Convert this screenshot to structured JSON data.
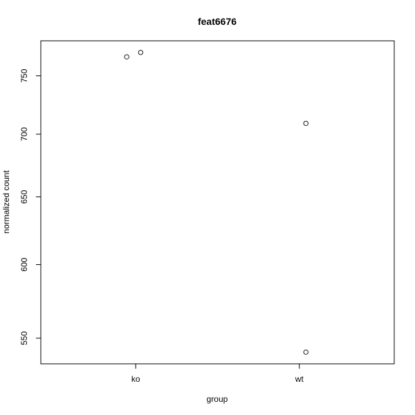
{
  "chart_data": {
    "type": "scatter",
    "title": "feat6676",
    "xlabel": "group",
    "ylabel": "normalized count",
    "categories": [
      "ko",
      "wt"
    ],
    "x_tick_labels": [
      "ko",
      "wt"
    ],
    "y_scale": "log",
    "y_ticks": [
      550,
      600,
      650,
      700,
      750
    ],
    "y_tick_labels": [
      "550",
      "600",
      "650",
      "700",
      "750"
    ],
    "ylim": [
      533.6,
      781.7
    ],
    "xlim": [
      0.42,
      2.58
    ],
    "grid": false,
    "points": [
      {
        "group": "ko",
        "x": 0.945,
        "y": 767
      },
      {
        "group": "ko",
        "x": 1.03,
        "y": 771
      },
      {
        "group": "wt",
        "x": 2.04,
        "y": 709
      },
      {
        "group": "wt",
        "x": 2.04,
        "y": 541
      }
    ]
  }
}
